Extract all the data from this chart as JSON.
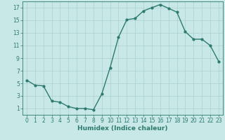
{
  "x": [
    0,
    1,
    2,
    3,
    4,
    5,
    6,
    7,
    8,
    9,
    10,
    11,
    12,
    13,
    14,
    15,
    16,
    17,
    18,
    19,
    20,
    21,
    22,
    23
  ],
  "y": [
    5.5,
    4.7,
    4.6,
    2.2,
    2.0,
    1.3,
    1.0,
    1.0,
    0.8,
    3.3,
    7.5,
    12.3,
    15.1,
    15.3,
    16.5,
    17.0,
    17.5,
    16.9,
    16.3,
    13.2,
    12.0,
    12.0,
    11.0,
    8.5
  ],
  "line_color": "#2d7a6e",
  "marker": "o",
  "marker_size": 2.0,
  "line_width": 1.0,
  "bg_color": "#c8e8e8",
  "grid_color": "#aad0d0",
  "xlabel": "Humidex (Indice chaleur)",
  "xlim": [
    -0.5,
    23.5
  ],
  "ylim": [
    0,
    18
  ],
  "xticks": [
    0,
    1,
    2,
    3,
    4,
    5,
    6,
    7,
    8,
    9,
    10,
    11,
    12,
    13,
    14,
    15,
    16,
    17,
    18,
    19,
    20,
    21,
    22,
    23
  ],
  "yticks": [
    1,
    3,
    5,
    7,
    9,
    11,
    13,
    15,
    17
  ],
  "xlabel_fontsize": 6.5,
  "tick_fontsize": 5.5
}
